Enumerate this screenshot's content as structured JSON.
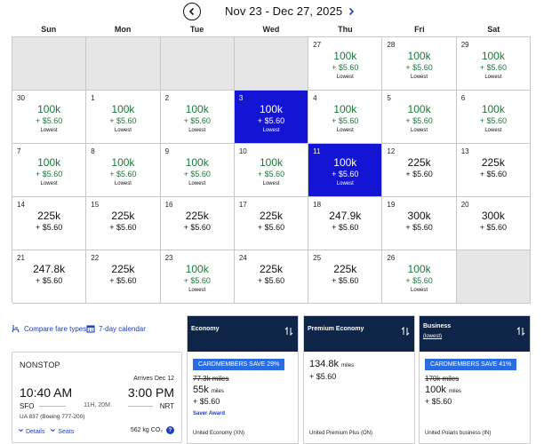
{
  "header": {
    "range_title": "Nov 23 - Dec 27, 2025"
  },
  "weekdays": [
    "Sun",
    "Mon",
    "Tue",
    "Wed",
    "Thu",
    "Fri",
    "Sat"
  ],
  "calendar": [
    {
      "day": "",
      "miles": "",
      "fee": "",
      "lowest": false,
      "empty": true
    },
    {
      "day": "",
      "miles": "",
      "fee": "",
      "lowest": false,
      "empty": true
    },
    {
      "day": "",
      "miles": "",
      "fee": "",
      "lowest": false,
      "empty": true
    },
    {
      "day": "",
      "miles": "",
      "fee": "",
      "lowest": false,
      "empty": true
    },
    {
      "day": "27",
      "miles": "100k",
      "fee": "+ $5.60",
      "lowest": true
    },
    {
      "day": "28",
      "miles": "100k",
      "fee": "+ $5.60",
      "lowest": true
    },
    {
      "day": "29",
      "miles": "100k",
      "fee": "+ $5.60",
      "lowest": true
    },
    {
      "day": "30",
      "miles": "100k",
      "fee": "+ $5.60",
      "lowest": true
    },
    {
      "day": "1",
      "miles": "100k",
      "fee": "+ $5.60",
      "lowest": true
    },
    {
      "day": "2",
      "miles": "100k",
      "fee": "+ $5.60",
      "lowest": true
    },
    {
      "day": "3",
      "miles": "100k",
      "fee": "+ $5.60",
      "lowest": true,
      "selected": true
    },
    {
      "day": "4",
      "miles": "100k",
      "fee": "+ $5.60",
      "lowest": true
    },
    {
      "day": "5",
      "miles": "100k",
      "fee": "+ $5.60",
      "lowest": true
    },
    {
      "day": "6",
      "miles": "100k",
      "fee": "+ $5.60",
      "lowest": true
    },
    {
      "day": "7",
      "miles": "100k",
      "fee": "+ $5.60",
      "lowest": true
    },
    {
      "day": "8",
      "miles": "100k",
      "fee": "+ $5.60",
      "lowest": true
    },
    {
      "day": "9",
      "miles": "100k",
      "fee": "+ $5.60",
      "lowest": true
    },
    {
      "day": "10",
      "miles": "100k",
      "fee": "+ $5.60",
      "lowest": true
    },
    {
      "day": "11",
      "miles": "100k",
      "fee": "+ $5.60",
      "lowest": true,
      "selected": true
    },
    {
      "day": "12",
      "miles": "225k",
      "fee": "+ $5.60",
      "lowest": false
    },
    {
      "day": "13",
      "miles": "225k",
      "fee": "+ $5.60",
      "lowest": false
    },
    {
      "day": "14",
      "miles": "225k",
      "fee": "+ $5.60",
      "lowest": false
    },
    {
      "day": "15",
      "miles": "225k",
      "fee": "+ $5.60",
      "lowest": false
    },
    {
      "day": "16",
      "miles": "225k",
      "fee": "+ $5.60",
      "lowest": false
    },
    {
      "day": "17",
      "miles": "225k",
      "fee": "+ $5.60",
      "lowest": false
    },
    {
      "day": "18",
      "miles": "247.9k",
      "fee": "+ $5.60",
      "lowest": false
    },
    {
      "day": "19",
      "miles": "300k",
      "fee": "+ $5.60",
      "lowest": false
    },
    {
      "day": "20",
      "miles": "300k",
      "fee": "+ $5.60",
      "lowest": false
    },
    {
      "day": "21",
      "miles": "247.8k",
      "fee": "+ $5.60",
      "lowest": false
    },
    {
      "day": "22",
      "miles": "225k",
      "fee": "+ $5.60",
      "lowest": false
    },
    {
      "day": "23",
      "miles": "100k",
      "fee": "+ $5.60",
      "lowest": true
    },
    {
      "day": "24",
      "miles": "225k",
      "fee": "+ $5.60",
      "lowest": false
    },
    {
      "day": "25",
      "miles": "225k",
      "fee": "+ $5.60",
      "lowest": false
    },
    {
      "day": "26",
      "miles": "100k",
      "fee": "+ $5.60",
      "lowest": true
    },
    {
      "day": "",
      "miles": "",
      "fee": "",
      "lowest": false,
      "empty": true
    }
  ],
  "lowest_label": "Lowest",
  "tools": {
    "compare_label": "Compare fare types",
    "seven_day_label": "7-day calendar"
  },
  "flight": {
    "nonstop": "NONSTOP",
    "arrives": "Arrives Dec 12",
    "depart_time": "10:40 AM",
    "arrive_time": "3:00 PM",
    "from": "SFO",
    "to": "NRT",
    "duration": "11H, 20M",
    "aircraft": "UA 837 (Boeing 777-200)",
    "details_label": "Details",
    "seats_label": "Seats",
    "co2": "562 kg CO₂",
    "info_glyph": "?"
  },
  "fares": {
    "economy": {
      "name": "Economy",
      "badge": "CARDMEMBERS SAVE 29%",
      "strike": "77.3k miles",
      "miles": "55k",
      "miles_unit": "miles",
      "fee": "+ $5.60",
      "saver": "Saver Award",
      "cabin": "United Economy (XN)"
    },
    "premium": {
      "name": "Premium Economy",
      "miles": "134.8k",
      "miles_unit": "miles",
      "fee": "+ $5.60",
      "cabin": "United Premium Plus (ON)"
    },
    "business": {
      "name": "Business",
      "sub": "(lowest)",
      "badge": "CARDMEMBERS SAVE 41%",
      "strike": "170k miles",
      "miles": "100k",
      "miles_unit": "miles",
      "fee": "+ $5.60",
      "cabin": "United Polaris business (IN)"
    }
  },
  "colors": {
    "selected": "#1414d4",
    "lowest_green": "#1a7a3a",
    "fare_header": "#0f2548",
    "link_blue": "#1e3fbf",
    "badge_blue": "#2a6de0"
  }
}
